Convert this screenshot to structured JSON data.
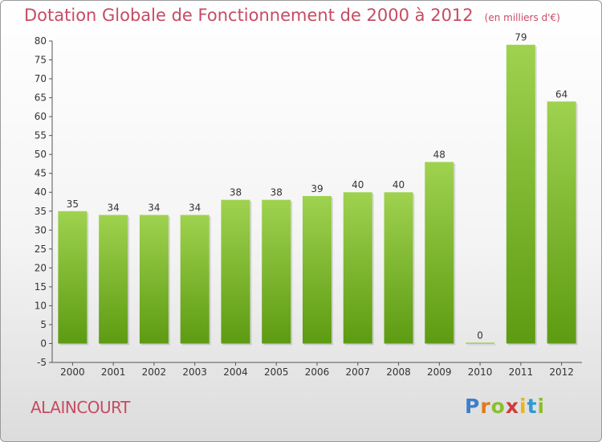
{
  "header": {
    "title": "Dotation Globale de Fonctionnement de 2000 à 2012",
    "unit": "(en milliers d'€)"
  },
  "footer": {
    "commune": "ALAINCOURT",
    "brand": "Proxiti"
  },
  "colors": {
    "bar_top": "#9fd24f",
    "bar_bottom": "#5d9b12",
    "title": "#c74b63"
  },
  "chart_data": {
    "type": "bar",
    "title": "Dotation Globale de Fonctionnement de 2000 à 2012",
    "subtitle": "(en milliers d'€)",
    "categories": [
      "2000",
      "2001",
      "2002",
      "2003",
      "2004",
      "2005",
      "2006",
      "2007",
      "2008",
      "2009",
      "2010",
      "2011",
      "2012"
    ],
    "values": [
      35,
      34,
      34,
      34,
      38,
      38,
      39,
      40,
      40,
      48,
      0,
      79,
      64
    ],
    "ylim": [
      -5,
      80
    ],
    "yticks": [
      -5,
      0,
      5,
      10,
      15,
      20,
      25,
      30,
      35,
      40,
      45,
      50,
      55,
      60,
      65,
      70,
      75,
      80
    ],
    "grid": false,
    "xlabel": "",
    "ylabel": ""
  }
}
